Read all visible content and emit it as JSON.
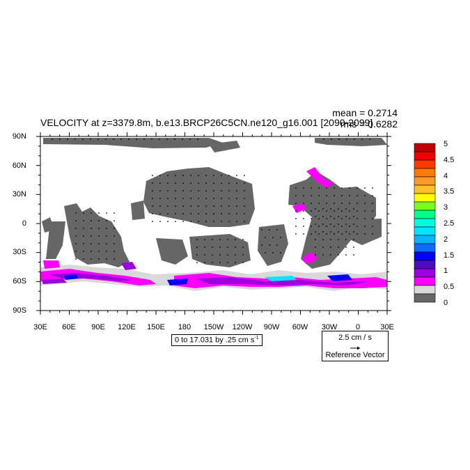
{
  "title": "VELOCITY at z=3379.8m, b.e13.BRCP26C5CN.ne120_g16.001 [2090-2099]",
  "stats": {
    "mean": "mean = 0.2714",
    "rms": "rms = 0.6282"
  },
  "lat_ticks": [
    "90N",
    "60N",
    "30N",
    "0",
    "30S",
    "60S",
    "90S"
  ],
  "lon_ticks": [
    "30E",
    "60E",
    "90E",
    "120E",
    "150E",
    "180",
    "150W",
    "120W",
    "90W",
    "60W",
    "30W",
    "0",
    "30E"
  ],
  "contour_info": "0 to 17.031 by .25 cm s",
  "contour_unit_exp": "-1",
  "reference_vector": {
    "magnitude": "2.5 cm / s",
    "label": "Reference Vector"
  },
  "colorbar": {
    "labels": [
      "5",
      "4.5",
      "4",
      "3.5",
      "3",
      "2.5",
      "2",
      "1.5",
      "1",
      "0.5",
      "0"
    ],
    "colors_top_to_bottom": [
      "#c00000",
      "#ee0000",
      "#ff3a00",
      "#ff7a00",
      "#ff9a2a",
      "#ffc028",
      "#ffff00",
      "#7aff22",
      "#00ff8a",
      "#00ffdd",
      "#00e6ff",
      "#00b4ff",
      "#0a6dff",
      "#0000ff",
      "#4f0bbf",
      "#9b00dd",
      "#ff00ff",
      "#d9d9d9",
      "#666666"
    ]
  },
  "map_colors": {
    "land": "#ffffff",
    "ocean_low": "#666666",
    "ocean_0_5": "#d9d9d9",
    "ocean_1": "#ff00ff",
    "ocean_1_5": "#9b00dd",
    "ocean_2": "#0000ff"
  }
}
